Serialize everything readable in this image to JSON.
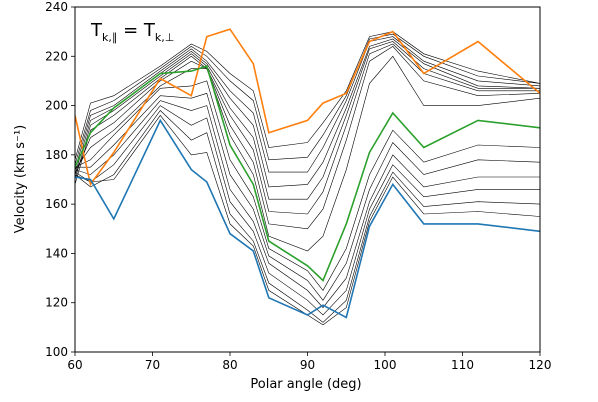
{
  "chart_data": {
    "type": "line",
    "annotation": {
      "main": "T",
      "sub1": "k,∥",
      "equals": " = T",
      "sub2": "k,⊥"
    },
    "xlabel": "Polar angle (deg)",
    "ylabel": "Velocity (km s⁻¹)",
    "xlim": [
      60,
      120
    ],
    "ylim": [
      100,
      240
    ],
    "xticks": [
      60,
      70,
      80,
      90,
      100,
      110,
      120
    ],
    "yticks": [
      100,
      120,
      140,
      160,
      180,
      200,
      220,
      240
    ],
    "grid": false,
    "x": [
      60,
      62,
      65,
      71,
      75,
      77,
      80,
      83,
      85,
      90,
      92,
      95,
      98,
      101,
      105,
      112,
      120
    ],
    "series": [
      {
        "color": "#ff7f0e",
        "width": 1.6,
        "values": [
          196,
          168,
          181,
          211,
          204,
          228,
          231,
          217,
          189,
          194,
          201,
          205,
          226,
          230,
          213,
          226,
          205
        ]
      },
      {
        "color": "#000000",
        "width": 0.6,
        "values": [
          178,
          201,
          204,
          216,
          225,
          222,
          213,
          206,
          183,
          185,
          193,
          206,
          228,
          230,
          221,
          214,
          209
        ]
      },
      {
        "color": "#000000",
        "width": 0.6,
        "values": [
          176,
          198,
          202,
          215,
          224,
          220,
          210,
          202,
          178,
          179,
          188,
          204,
          227,
          229,
          220,
          212,
          209
        ]
      },
      {
        "color": "#000000",
        "width": 0.6,
        "values": [
          174,
          196,
          200,
          214,
          223,
          218,
          206,
          197,
          173,
          173,
          183,
          202,
          226,
          228,
          218,
          210,
          208
        ]
      },
      {
        "color": "#000000",
        "width": 0.6,
        "values": [
          172,
          194,
          199,
          213,
          222,
          217,
          203,
          192,
          167,
          168,
          177,
          199,
          224,
          227,
          217,
          208,
          207
        ]
      },
      {
        "color": "#000000",
        "width": 0.6,
        "values": [
          170,
          192,
          198,
          212,
          221,
          216,
          199,
          187,
          162,
          162,
          171,
          196,
          223,
          226,
          215,
          207,
          207
        ]
      },
      {
        "color": "#000000",
        "width": 0.6,
        "values": [
          168,
          190,
          196,
          211,
          220,
          215,
          196,
          182,
          157,
          156,
          165,
          192,
          221,
          225,
          213,
          206,
          206
        ]
      },
      {
        "color": "#000000",
        "width": 0.6,
        "values": [
          172,
          187,
          193,
          210,
          218,
          215,
          192,
          177,
          152,
          150,
          158,
          186,
          218,
          224,
          210,
          204,
          205
        ]
      },
      {
        "color": "#000000",
        "width": 0.6,
        "values": [
          174,
          183,
          190,
          208,
          215,
          215,
          188,
          172,
          147,
          141,
          147,
          174,
          209,
          220,
          200,
          200,
          203
        ]
      },
      {
        "color": "#2ca02c",
        "width": 1.6,
        "values": [
          175,
          189,
          199,
          213,
          214,
          216,
          184,
          168,
          145,
          135,
          129,
          152,
          181,
          197,
          183,
          194,
          191
        ]
      },
      {
        "color": "#000000",
        "width": 0.6,
        "values": [
          175,
          178,
          188,
          207,
          208,
          210,
          178,
          163,
          142,
          133,
          125,
          142,
          172,
          190,
          177,
          184,
          183
        ]
      },
      {
        "color": "#000000",
        "width": 0.6,
        "values": [
          175,
          175,
          184,
          204,
          203,
          205,
          172,
          158,
          139,
          129,
          121,
          136,
          166,
          185,
          172,
          178,
          177
        ]
      },
      {
        "color": "#000000",
        "width": 0.6,
        "values": [
          174,
          172,
          180,
          202,
          198,
          200,
          166,
          153,
          136,
          125,
          118,
          130,
          161,
          180,
          167,
          171,
          171
        ]
      },
      {
        "color": "#000000",
        "width": 0.6,
        "values": [
          173,
          169,
          176,
          200,
          192,
          195,
          161,
          149,
          132,
          121,
          115,
          125,
          158,
          176,
          163,
          166,
          166
        ]
      },
      {
        "color": "#000000",
        "width": 0.6,
        "values": [
          172,
          167,
          172,
          198,
          186,
          189,
          156,
          145,
          128,
          117,
          112,
          121,
          155,
          173,
          159,
          161,
          160
        ]
      },
      {
        "color": "#000000",
        "width": 0.6,
        "values": [
          172,
          169,
          170,
          196,
          180,
          181,
          152,
          143,
          125,
          115,
          111,
          118,
          153,
          171,
          156,
          157,
          155
        ]
      },
      {
        "color": "#1f77b4",
        "width": 1.6,
        "values": [
          171,
          170,
          154,
          194,
          174,
          169,
          148,
          141,
          122,
          115,
          119,
          114,
          151,
          168,
          152,
          152,
          149
        ]
      }
    ]
  }
}
